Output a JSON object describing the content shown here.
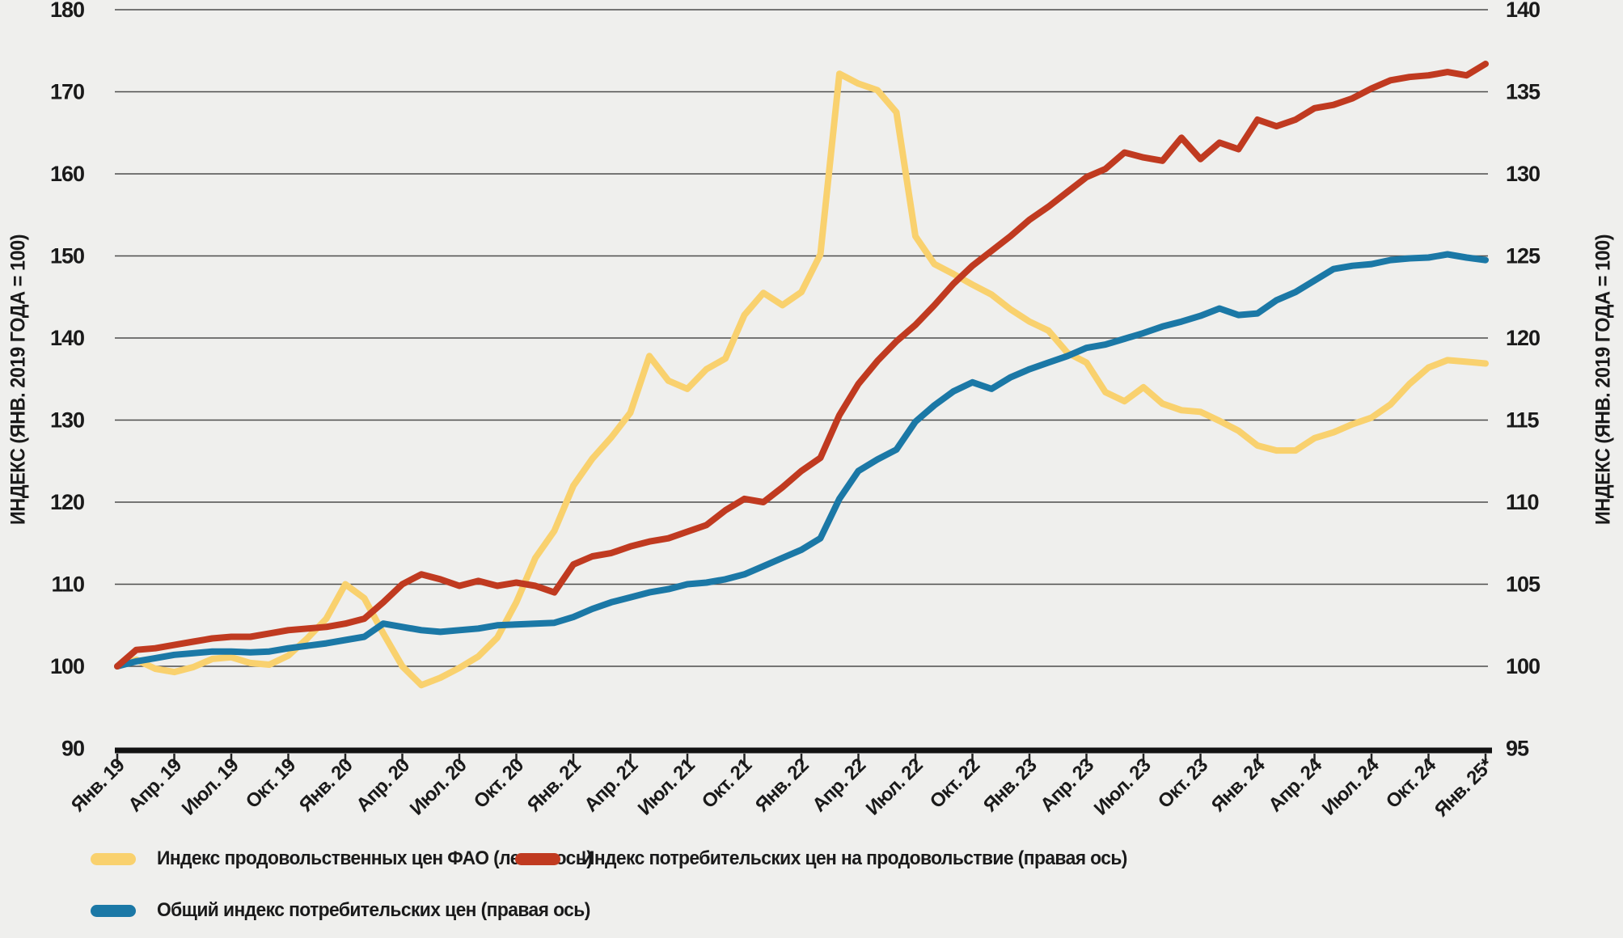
{
  "chart_data": {
    "type": "line",
    "title": "",
    "background_color": "#efefed",
    "gridline_color": "#4d4d4d",
    "axis_line_color": "#121212",
    "text_color": "#1a1a1a",
    "grid": true,
    "legend_position": "bottom",
    "x_tick_labels": [
      "Янв. 19",
      "Апр. 19",
      "Июл. 19",
      "Окт. 19",
      "Янв. 20",
      "Апр. 20",
      "Июл. 20",
      "Окт. 20",
      "Янв. 21",
      "Апр. 21",
      "Июл. 21",
      "Окт. 21",
      "Янв. 22",
      "Апр. 22",
      "Июл. 22",
      "Окт. 22",
      "Янв. 23",
      "Апр. 23",
      "Июл. 23",
      "Окт. 23",
      "Янв. 24",
      "Апр. 24",
      "Июл. 24",
      "Окт. 24",
      "Янв. 25*"
    ],
    "x_months_per_point": 1,
    "x_points_per_tick": 3,
    "left_axis": {
      "title": "ИНДЕКС (ЯНВ. 2019 ГОДА = 100)",
      "ticks": [
        180,
        170,
        160,
        150,
        140,
        130,
        120,
        110,
        100,
        90
      ],
      "range": [
        90,
        180
      ]
    },
    "right_axis": {
      "title": "ИНДЕКС (ЯНВ. 2019 ГОДА = 100)",
      "ticks": [
        140,
        135,
        130,
        125,
        120,
        115,
        110,
        105,
        100,
        95
      ],
      "range": [
        95,
        140
      ]
    },
    "series": [
      {
        "name": "Индекс продовольственных цен ФАО (левая ось)",
        "axis": "left",
        "color": "#f9d16e",
        "values": [
          100.0,
          100.8,
          99.7,
          99.3,
          99.9,
          100.9,
          101.1,
          100.4,
          100.2,
          101.3,
          103.4,
          105.8,
          110.0,
          108.3,
          104.0,
          100.0,
          97.7,
          98.6,
          99.8,
          101.2,
          103.5,
          107.8,
          113.2,
          116.5,
          122.0,
          125.3,
          127.9,
          130.9,
          137.8,
          134.8,
          133.8,
          136.2,
          137.5,
          142.8,
          145.5,
          144.0,
          145.6,
          150.2,
          172.2,
          171.0,
          170.2,
          167.5,
          152.4,
          149.0,
          147.8,
          146.5,
          145.3,
          143.5,
          142.0,
          140.9,
          138.2,
          137.0,
          133.4,
          132.3,
          134.0,
          132.0,
          131.2,
          131.0,
          129.9,
          128.7,
          126.9,
          126.3,
          126.3,
          127.8,
          128.5,
          129.5,
          130.3,
          131.9,
          134.4,
          136.4,
          137.3,
          137.1,
          136.9
        ]
      },
      {
        "name": "Индекс потребительских цен на продовольствие (правая ось)",
        "axis": "right",
        "color": "#c03a20",
        "values": [
          100.0,
          101.0,
          101.1,
          101.3,
          101.5,
          101.7,
          101.8,
          101.8,
          102.0,
          102.2,
          102.3,
          102.4,
          102.6,
          102.9,
          103.9,
          105.0,
          105.6,
          105.3,
          104.9,
          105.2,
          104.9,
          105.1,
          104.9,
          104.5,
          106.2,
          106.7,
          106.9,
          107.3,
          107.6,
          107.8,
          108.2,
          108.6,
          109.5,
          110.2,
          110.0,
          110.9,
          111.9,
          112.7,
          115.3,
          117.2,
          118.6,
          119.8,
          120.8,
          122.0,
          123.3,
          124.4,
          125.3,
          126.2,
          127.2,
          128.0,
          128.9,
          129.8,
          130.3,
          131.3,
          131.0,
          130.8,
          132.2,
          130.9,
          131.9,
          131.5,
          133.3,
          132.9,
          133.3,
          134.0,
          134.2,
          134.6,
          135.2,
          135.7,
          135.9,
          136.0,
          136.2,
          136.0,
          136.7
        ]
      },
      {
        "name": "Общий индекс потребительских цен (правая ось)",
        "axis": "right",
        "color": "#1b78a6",
        "values": [
          100.0,
          100.3,
          100.5,
          100.7,
          100.8,
          100.9,
          100.9,
          100.85,
          100.9,
          101.1,
          101.25,
          101.4,
          101.6,
          101.8,
          102.6,
          102.4,
          102.2,
          102.1,
          102.2,
          102.3,
          102.5,
          102.55,
          102.6,
          102.65,
          103.0,
          103.5,
          103.9,
          104.2,
          104.5,
          104.7,
          105.0,
          105.1,
          105.3,
          105.6,
          106.1,
          106.6,
          107.1,
          107.8,
          110.2,
          111.9,
          112.6,
          113.2,
          114.9,
          115.9,
          116.75,
          117.3,
          116.9,
          117.6,
          118.1,
          118.5,
          118.9,
          119.4,
          119.6,
          119.95,
          120.3,
          120.7,
          121.0,
          121.35,
          121.8,
          121.4,
          121.5,
          122.3,
          122.8,
          123.5,
          124.2,
          124.4,
          124.5,
          124.75,
          124.85,
          124.9,
          125.1,
          124.9,
          124.75
        ]
      }
    ]
  }
}
